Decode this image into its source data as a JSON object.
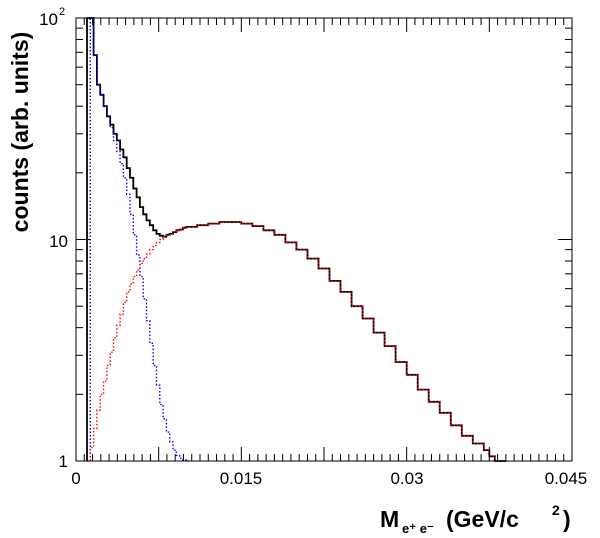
{
  "chart_data": {
    "type": "line",
    "plot_style": "step histogram",
    "xlabel_main": "M",
    "xlabel_sub": "e⁺ e⁻",
    "xlabel_unit": "(GeV/c",
    "xlabel_unit_sup": "2",
    "xlabel_unit_close": ")",
    "ylabel": "counts (arb. units)",
    "y_scale": "log",
    "xlim": [
      0,
      0.045
    ],
    "ylim": [
      1,
      100
    ],
    "x_ticks": [
      {
        "value": 0,
        "label": "0"
      },
      {
        "value": 0.015,
        "label": "0.015"
      },
      {
        "value": 0.03,
        "label": "0.03"
      },
      {
        "value": 0.045,
        "label": "0.045"
      }
    ],
    "y_ticks": [
      {
        "value": 1,
        "label": "1"
      },
      {
        "value": 10,
        "label": "10"
      },
      {
        "value": 100,
        "label": "10",
        "sup": "2"
      }
    ],
    "grid": false,
    "series": [
      {
        "color": "#000000",
        "style": "solid",
        "x": [
          0.001,
          0.0013,
          0.0016,
          0.0019,
          0.0022,
          0.0025,
          0.0028,
          0.0031,
          0.0034,
          0.0037,
          0.004,
          0.0043,
          0.0046,
          0.0049,
          0.0052,
          0.0055,
          0.0058,
          0.0061,
          0.0064,
          0.0067,
          0.007,
          0.0073,
          0.0076,
          0.0079,
          0.0082,
          0.0085,
          0.0088,
          0.0091,
          0.0094,
          0.0097,
          0.01,
          0.011,
          0.012,
          0.013,
          0.014,
          0.015,
          0.016,
          0.017,
          0.018,
          0.019,
          0.02,
          0.021,
          0.022,
          0.023,
          0.024,
          0.025,
          0.026,
          0.027,
          0.028,
          0.029,
          0.03,
          0.031,
          0.032,
          0.033,
          0.034,
          0.035,
          0.036,
          0.037,
          0.0375,
          0.038,
          0.0385
        ],
        "y": [
          100,
          100,
          68,
          50,
          45,
          40,
          36,
          33,
          30,
          28,
          25.5,
          23.5,
          21,
          19,
          17,
          15.5,
          14,
          13,
          12.2,
          11.6,
          11,
          10.6,
          10.4,
          10.3,
          10.5,
          10.6,
          10.8,
          11,
          11.1,
          11.3,
          11.4,
          11.6,
          11.8,
          12,
          12,
          11.8,
          11.5,
          11,
          10.5,
          9.7,
          9,
          8.2,
          7.4,
          6.5,
          5.8,
          5,
          4.4,
          3.8,
          3.3,
          2.8,
          2.45,
          2.1,
          1.85,
          1.65,
          1.45,
          1.3,
          1.2,
          1.12,
          1.05,
          1,
          1
        ]
      },
      {
        "color": "#0000ff",
        "style": "dotted",
        "x": [
          0.0013,
          0.0016,
          0.0019,
          0.0022,
          0.0025,
          0.0028,
          0.0031,
          0.0034,
          0.0037,
          0.004,
          0.0043,
          0.0046,
          0.0049,
          0.0052,
          0.0055,
          0.0058,
          0.0061,
          0.0064,
          0.0067,
          0.007,
          0.0073,
          0.0076,
          0.0079,
          0.0082,
          0.0085,
          0.0088,
          0.0091,
          0.0094,
          0.0097,
          0.01
        ],
        "y": [
          100,
          68,
          50,
          45,
          40,
          36,
          32,
          28,
          25,
          22,
          19,
          16,
          13,
          10.5,
          8.5,
          6.8,
          5.4,
          4.3,
          3.4,
          2.7,
          2.2,
          1.8,
          1.55,
          1.35,
          1.22,
          1.12,
          1.06,
          1.03,
          1.01,
          1
        ]
      },
      {
        "color": "#ff0000",
        "style": "dotted",
        "x": [
          0.001,
          0.0013,
          0.0016,
          0.0019,
          0.0022,
          0.0025,
          0.0028,
          0.0031,
          0.0034,
          0.0037,
          0.004,
          0.0043,
          0.0046,
          0.0049,
          0.0052,
          0.0055,
          0.0058,
          0.0061,
          0.0064,
          0.0067,
          0.007,
          0.0073,
          0.0076,
          0.0079,
          0.0082,
          0.0085,
          0.0088,
          0.0091,
          0.0094,
          0.0097,
          0.01,
          0.011,
          0.012,
          0.013,
          0.014,
          0.015,
          0.016,
          0.017,
          0.018,
          0.019,
          0.02,
          0.021,
          0.022,
          0.023,
          0.024,
          0.025,
          0.026,
          0.027,
          0.028,
          0.029,
          0.03,
          0.031,
          0.032,
          0.033,
          0.034,
          0.035,
          0.036,
          0.037,
          0.0375,
          0.038,
          0.0385
        ],
        "y": [
          1,
          1.15,
          1.4,
          1.7,
          2,
          2.3,
          2.7,
          3.1,
          3.6,
          4.1,
          4.6,
          5.2,
          5.8,
          6.3,
          6.8,
          7.3,
          7.8,
          8.2,
          8.6,
          9,
          9.4,
          9.7,
          10,
          10.3,
          10.5,
          10.6,
          10.8,
          11,
          11.1,
          11.3,
          11.4,
          11.6,
          11.8,
          12,
          12,
          11.8,
          11.5,
          11,
          10.5,
          9.7,
          9,
          8.2,
          7.4,
          6.5,
          5.8,
          5,
          4.4,
          3.8,
          3.3,
          2.8,
          2.45,
          2.1,
          1.85,
          1.65,
          1.45,
          1.3,
          1.2,
          1.12,
          1.05,
          1,
          1
        ]
      }
    ]
  }
}
